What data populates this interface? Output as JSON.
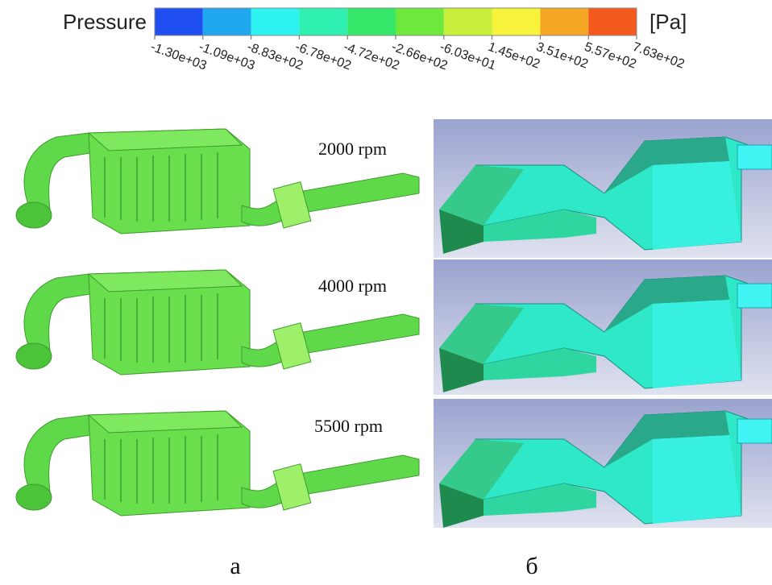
{
  "legend": {
    "title": "Pressure",
    "unit": "[Pa]",
    "colors": [
      "#1f4ff0",
      "#1fa8ee",
      "#2ef2f0",
      "#2ff0b0",
      "#35e86a",
      "#6ee83a",
      "#c8f03a",
      "#f7f23a",
      "#f5a623",
      "#f45a1e"
    ],
    "ticks": [
      "-1.30e+03",
      "-1.09e+03",
      "-8.83e+02",
      "-6.78e+02",
      "-4.72e+02",
      "-2.66e+02",
      "-6.03e+01",
      "1.45e+02",
      "3.51e+02",
      "5.57e+02",
      "7.63e+02"
    ]
  },
  "rows": [
    {
      "label": "2000 rpm"
    },
    {
      "label": "4000 rpm"
    },
    {
      "label": "5500 rpm"
    }
  ],
  "panels": [
    "а",
    "б"
  ]
}
